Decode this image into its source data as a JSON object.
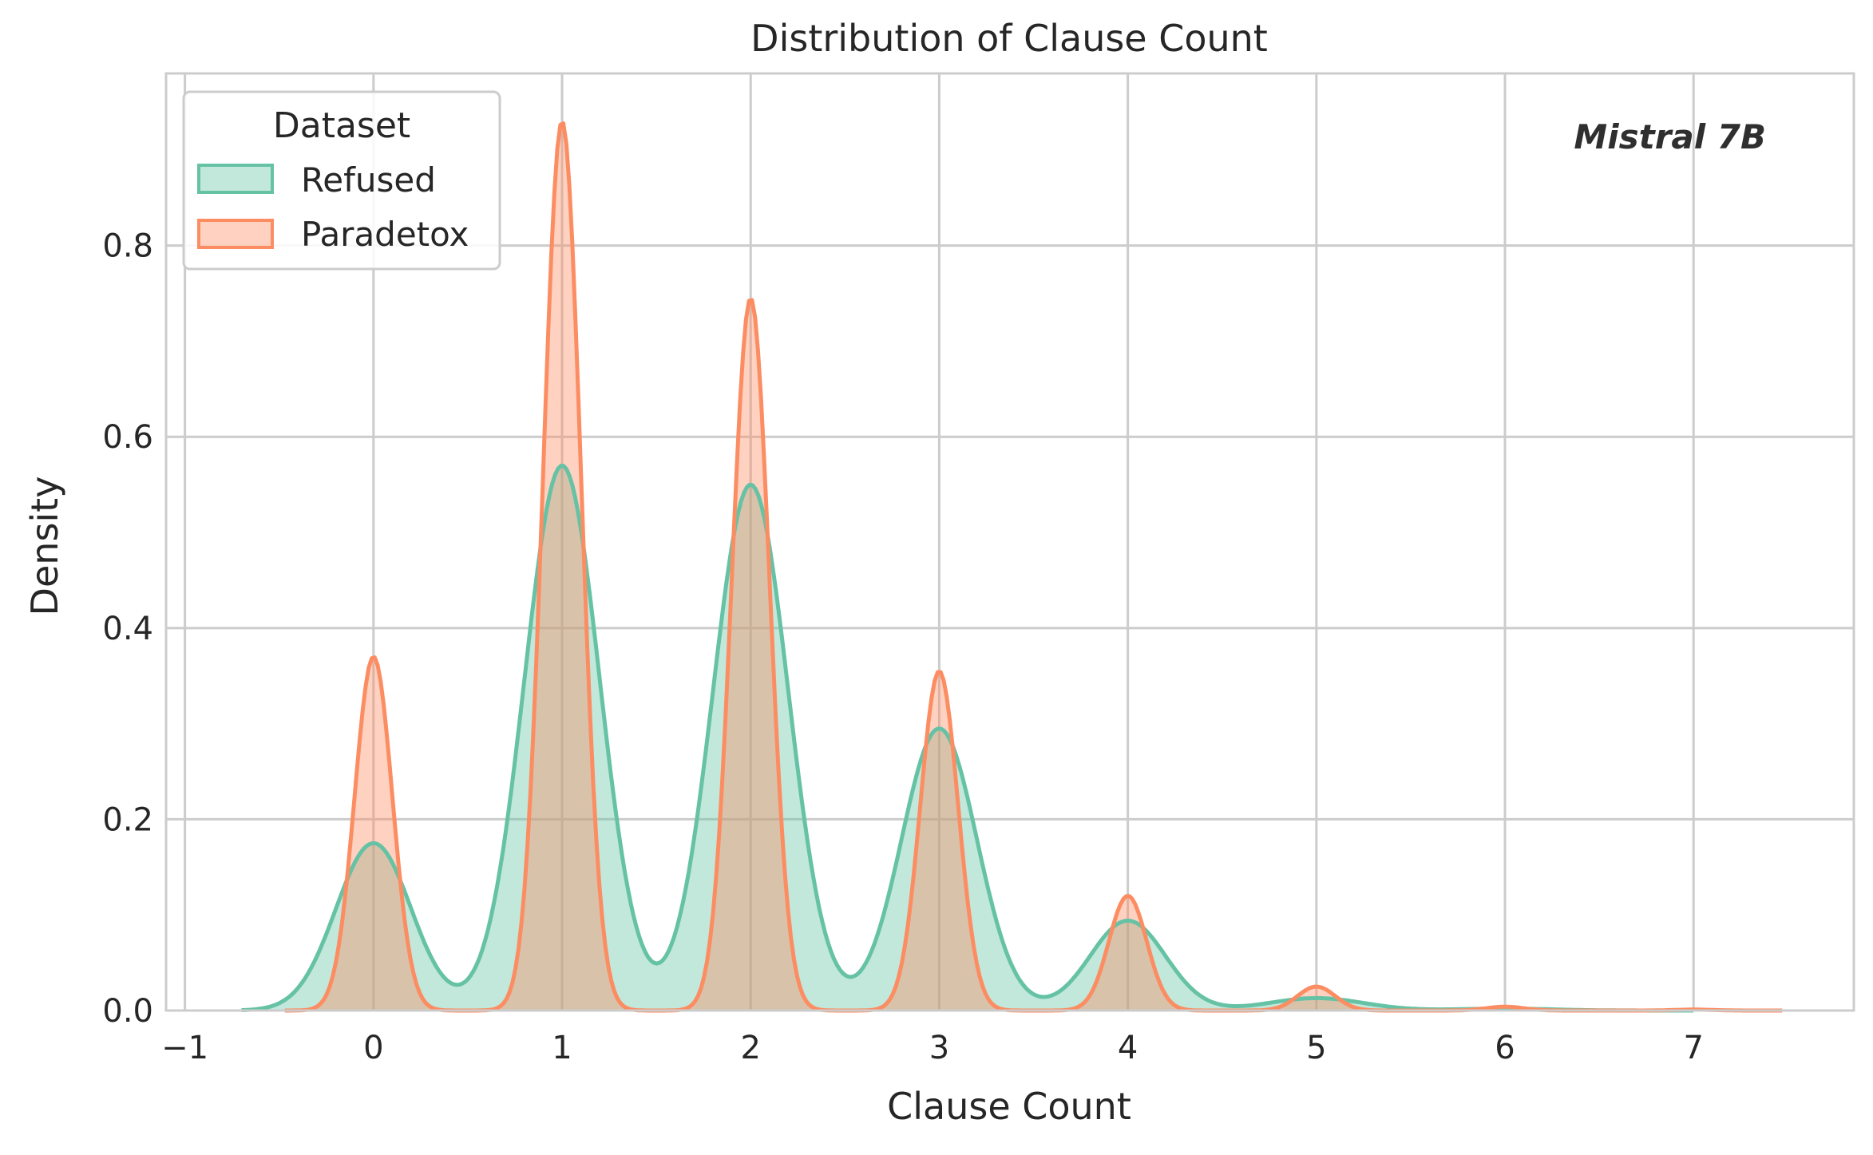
{
  "chart_data": {
    "type": "area",
    "title": "Distribution of Clause Count",
    "xlabel": "Clause Count",
    "ylabel": "Density",
    "annotation": "Mistral 7B",
    "xlim": [
      -1.1,
      7.85
    ],
    "ylim": [
      0,
      0.98
    ],
    "xticks": [
      -1,
      0,
      1,
      2,
      3,
      4,
      5,
      6,
      7
    ],
    "xtick_labels": [
      "−1",
      "0",
      "1",
      "2",
      "3",
      "4",
      "5",
      "6",
      "7"
    ],
    "yticks": [
      0.0,
      0.2,
      0.4,
      0.6,
      0.8
    ],
    "ytick_labels": [
      "0.0",
      "0.2",
      "0.4",
      "0.6",
      "0.8"
    ],
    "grid": true,
    "legend": {
      "title": "Dataset",
      "position": "upper-left"
    },
    "series": [
      {
        "name": "Refused",
        "color": "#66c2a5",
        "x_range": [
          -0.7,
          7.0
        ],
        "peaks": [
          {
            "x": 0,
            "y": 0.175,
            "sigma": 0.2
          },
          {
            "x": 1,
            "y": 0.57,
            "sigma": 0.2
          },
          {
            "x": 2,
            "y": 0.55,
            "sigma": 0.2
          },
          {
            "x": 3,
            "y": 0.295,
            "sigma": 0.2
          },
          {
            "x": 4,
            "y": 0.094,
            "sigma": 0.2
          },
          {
            "x": 5,
            "y": 0.013,
            "sigma": 0.25
          },
          {
            "x": 6,
            "y": 0.002,
            "sigma": 0.25
          }
        ]
      },
      {
        "name": "Paradetox",
        "color": "#fc8d62",
        "x_range": [
          -0.47,
          7.47
        ],
        "peaks": [
          {
            "x": 0,
            "y": 0.37,
            "sigma": 0.1
          },
          {
            "x": 1,
            "y": 0.93,
            "sigma": 0.1
          },
          {
            "x": 2,
            "y": 0.745,
            "sigma": 0.1
          },
          {
            "x": 3,
            "y": 0.355,
            "sigma": 0.1
          },
          {
            "x": 4,
            "y": 0.12,
            "sigma": 0.1
          },
          {
            "x": 5,
            "y": 0.025,
            "sigma": 0.1
          },
          {
            "x": 6,
            "y": 0.004,
            "sigma": 0.1
          },
          {
            "x": 7,
            "y": 0.001,
            "sigma": 0.1
          }
        ]
      }
    ]
  }
}
